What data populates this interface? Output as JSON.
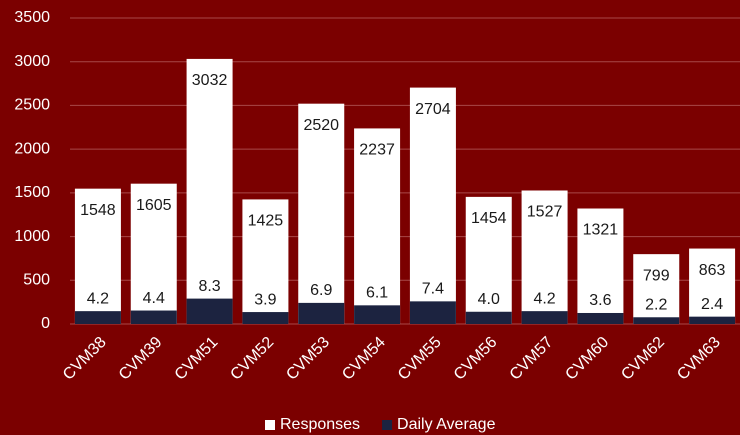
{
  "chart_data": {
    "type": "bar",
    "categories": [
      "CVM38",
      "CVM39",
      "CVM51",
      "CVM52",
      "CVM53",
      "CVM54",
      "CVM55",
      "CVM56",
      "CVM57",
      "CVM60",
      "CVM62",
      "CVM63"
    ],
    "series": [
      {
        "name": "Responses",
        "color": "#ffffff",
        "values": [
          1548,
          1605,
          3032,
          1425,
          2520,
          2237,
          2704,
          1454,
          1527,
          1321,
          799,
          863
        ]
      },
      {
        "name": "Daily Average",
        "color": "#1c2340",
        "axis": "y2",
        "values": [
          4.2,
          4.4,
          8.3,
          3.9,
          6.9,
          6.1,
          7.4,
          4.0,
          4.2,
          3.6,
          2.2,
          2.4
        ],
        "value_labels": [
          "4.2",
          "4.4",
          "8.3",
          "3.9",
          "6.9",
          "6.1",
          "7.4",
          "4.0",
          "4.2",
          "3.6",
          "2.2",
          "2.4"
        ]
      }
    ],
    "ylim": [
      0,
      3500
    ],
    "yticks": [
      0,
      500,
      1000,
      1500,
      2000,
      2500,
      3000,
      3500
    ],
    "y2lim": [
      0,
      100
    ],
    "grid": true,
    "legend": "bottom"
  }
}
